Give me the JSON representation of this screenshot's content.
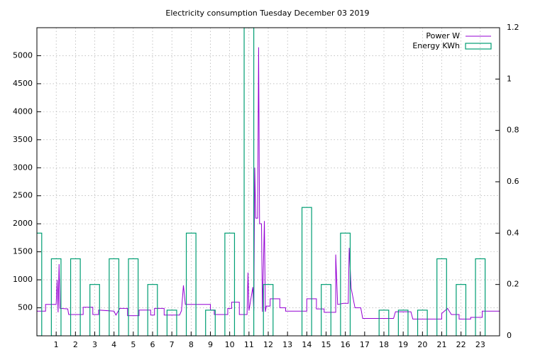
{
  "chart_data": {
    "type": "combo",
    "title": "Electricity consumption Tuesday December 03 2019",
    "xlim": [
      0,
      24
    ],
    "xticks": [
      1,
      2,
      3,
      4,
      5,
      6,
      7,
      8,
      9,
      10,
      11,
      12,
      13,
      14,
      15,
      16,
      17,
      18,
      19,
      20,
      21,
      22,
      23
    ],
    "ylim": [
      0,
      5500
    ],
    "yticks": [
      500,
      1000,
      1500,
      2000,
      2500,
      3000,
      3500,
      4000,
      4500,
      5000
    ],
    "y2lim": [
      0,
      1.2
    ],
    "y2ticks": [
      0,
      0.2,
      0.4,
      0.6,
      0.8,
      1,
      1.2
    ],
    "grid": true,
    "legend": "top-right",
    "series": [
      {
        "name": "Power W",
        "type": "line",
        "color": "#9400d3",
        "x": [
          0,
          0.45,
          0.45,
          1,
          1.05,
          1.1,
          1.15,
          1.2,
          1.6,
          1.65,
          2.4,
          2.4,
          2.9,
          2.9,
          3.2,
          3.2,
          4,
          4.1,
          4.3,
          4.7,
          4.7,
          5.3,
          5.3,
          5.9,
          5.9,
          6.1,
          6.1,
          6.6,
          6.6,
          7.4,
          7.5,
          7.6,
          7.7,
          9,
          9,
          9.2,
          9.2,
          9.9,
          9.9,
          10.1,
          10.1,
          10.5,
          10.5,
          10.9,
          10.95,
          11,
          11.2,
          11.25,
          11.3,
          11.35,
          11.45,
          11.5,
          11.55,
          11.65,
          11.7,
          11.8,
          11.85,
          11.9,
          12.1,
          12.1,
          12.6,
          12.6,
          12.9,
          12.9,
          14,
          14,
          14.5,
          14.5,
          14.9,
          14.9,
          15.5,
          15.5,
          15.6,
          15.9,
          16.15,
          16.2,
          16.3,
          16.5,
          16.8,
          16.9,
          18.5,
          18.6,
          19.4,
          19.5,
          21,
          21,
          21.3,
          21.5,
          21.9,
          21.9,
          22.5,
          22.5,
          23.1,
          23.1,
          24
        ],
        "values": [
          440,
          440,
          560,
          560,
          1000,
          420,
          1280,
          490,
          480,
          380,
          380,
          510,
          510,
          380,
          380,
          460,
          440,
          370,
          490,
          490,
          360,
          360,
          460,
          460,
          370,
          370,
          490,
          490,
          370,
          370,
          450,
          900,
          560,
          560,
          460,
          460,
          380,
          380,
          490,
          490,
          600,
          600,
          380,
          380,
          1130,
          450,
          870,
          450,
          3000,
          2100,
          2100,
          5150,
          2000,
          2000,
          430,
          2050,
          430,
          530,
          530,
          660,
          660,
          500,
          500,
          440,
          440,
          660,
          660,
          480,
          480,
          420,
          420,
          1450,
          560,
          580,
          580,
          1570,
          850,
          500,
          500,
          310,
          310,
          430,
          430,
          300,
          300,
          400,
          490,
          380,
          380,
          300,
          300,
          330,
          330,
          440,
          440
        ]
      },
      {
        "name": "Energy KWh",
        "type": "bar",
        "axis": "y2",
        "color": "#009e73",
        "x": [
          0,
          1,
          2,
          3,
          4,
          5,
          6,
          7,
          8,
          9,
          10,
          11,
          12,
          13,
          14,
          15,
          16,
          17,
          18,
          19,
          20,
          21,
          22,
          23
        ],
        "values": [
          0.4,
          0.3,
          0.3,
          0.2,
          0.3,
          0.3,
          0.2,
          0.1,
          0.4,
          0.1,
          0.4,
          1.2,
          0.2,
          0,
          0.5,
          0.2,
          0.4,
          0,
          0.1,
          0.1,
          0.1,
          0.3,
          0.2,
          0.3
        ]
      }
    ]
  }
}
